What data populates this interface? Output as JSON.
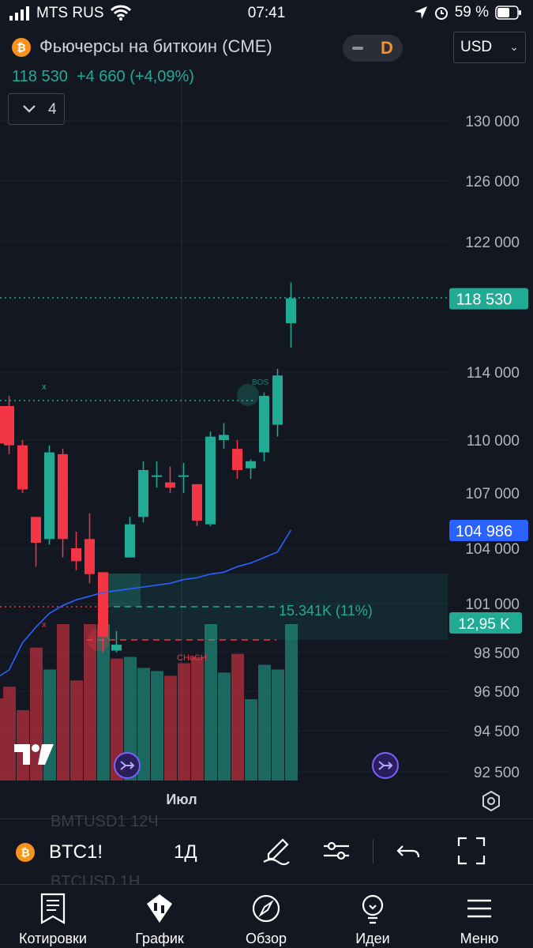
{
  "status_bar": {
    "carrier": "MTS RUS",
    "time": "07:41",
    "battery": "59 %"
  },
  "header": {
    "coin_symbol": "₿",
    "title": "Фьючерсы на биткоин (CME)",
    "interval_badge": "D",
    "currency": "USD",
    "price": "118 530",
    "change": "+4 660 (+4,09%)",
    "indicators_count": "4"
  },
  "price_axis": [
    "130 000",
    "126 000",
    "122 000",
    "114 000",
    "110 000",
    "107 000",
    "104 000",
    "101 000",
    "98 500",
    "96 500",
    "94 500",
    "92 500"
  ],
  "price_badges": {
    "last": "118 530",
    "ma": "104 986",
    "volume": "12,95 K"
  },
  "annotations": {
    "range_label": "15.341K (11%)",
    "choch": "CHoCH",
    "bos": "BOS",
    "x_mark": "x"
  },
  "time_axis": {
    "label": "Июл"
  },
  "toolbar": {
    "symbol": "BTC1!",
    "interval": "1Д",
    "ghost_top": "BMTUSD1   12Ч",
    "ghost_bottom": "BTCUSD   1H"
  },
  "tabs": [
    {
      "label": "Котировки",
      "icon": "watchlist-icon"
    },
    {
      "label": "График",
      "icon": "chart-icon"
    },
    {
      "label": "Обзор",
      "icon": "compass-icon"
    },
    {
      "label": "Идеи",
      "icon": "lightbulb-icon"
    },
    {
      "label": "Меню",
      "icon": "menu-icon"
    }
  ],
  "colors": {
    "up": "#22ab94",
    "down": "#f23645",
    "ma": "#2962ff",
    "background": "#131722"
  },
  "chart_data": {
    "type": "candlestick",
    "symbol": "BTC1!",
    "interval": "1D",
    "candles": [
      {
        "o": 112000,
        "h": 112600,
        "l": 109200,
        "c": 109700
      },
      {
        "o": 109700,
        "h": 110000,
        "l": 107000,
        "c": 107200
      },
      {
        "o": 105700,
        "h": 105700,
        "l": 103000,
        "c": 104300
      },
      {
        "o": 104500,
        "h": 109700,
        "l": 104200,
        "c": 109300
      },
      {
        "o": 109200,
        "h": 109500,
        "l": 103500,
        "c": 104500
      },
      {
        "o": 104000,
        "h": 104900,
        "l": 102800,
        "c": 103300
      },
      {
        "o": 104500,
        "h": 105900,
        "l": 102100,
        "c": 102600
      },
      {
        "o": 102700,
        "h": 102700,
        "l": 98500,
        "c": 99300
      },
      {
        "o": 98600,
        "h": 99600,
        "l": 98500,
        "c": 98900
      },
      {
        "o": 103500,
        "h": 105700,
        "l": 103500,
        "c": 105300
      },
      {
        "o": 105700,
        "h": 108800,
        "l": 105400,
        "c": 108300
      },
      {
        "o": 108000,
        "h": 108800,
        "l": 107300,
        "c": 108000
      },
      {
        "o": 107600,
        "h": 108500,
        "l": 107000,
        "c": 107300
      },
      {
        "o": 108000,
        "h": 108700,
        "l": 107000,
        "c": 108000
      },
      {
        "o": 107500,
        "h": 107500,
        "l": 105200,
        "c": 105500
      },
      {
        "o": 105300,
        "h": 110500,
        "l": 105200,
        "c": 110200
      },
      {
        "o": 110000,
        "h": 111000,
        "l": 109500,
        "c": 110300
      },
      {
        "o": 109500,
        "h": 110000,
        "l": 107800,
        "c": 108300
      },
      {
        "o": 108400,
        "h": 108900,
        "l": 107800,
        "c": 108800
      },
      {
        "o": 109300,
        "h": 112800,
        "l": 108800,
        "c": 112600
      },
      {
        "o": 110900,
        "h": 114200,
        "l": 110200,
        "c": 113800
      },
      {
        "o": 117000,
        "h": 119500,
        "l": 115500,
        "c": 118530
      }
    ],
    "volume_colors": [
      "down",
      "down",
      "down",
      "up",
      "down",
      "down",
      "down",
      "up",
      "down",
      "up",
      "up",
      "up",
      "down",
      "down",
      "down",
      "up",
      "up",
      "down",
      "up",
      "up",
      "up",
      "up"
    ],
    "volumes": [
      0.6,
      0.45,
      0.85,
      0.71,
      1.0,
      0.64,
      1.0,
      1.0,
      0.78,
      0.79,
      0.72,
      0.7,
      0.67,
      0.75,
      0.79,
      1.0,
      0.69,
      0.81,
      0.52,
      0.74,
      0.71,
      1.0
    ],
    "ma_line": [
      97600,
      99000,
      99800,
      100500,
      100900,
      101200,
      101400,
      101600,
      101700,
      101800,
      101900,
      102000,
      102100,
      102300,
      102400,
      102600,
      102700,
      103000,
      103200,
      103500,
      103800,
      104986
    ],
    "ylim": [
      92500,
      130000
    ],
    "last_price": 118530,
    "ma_value": 104986,
    "volume_last": "12,95 K"
  }
}
